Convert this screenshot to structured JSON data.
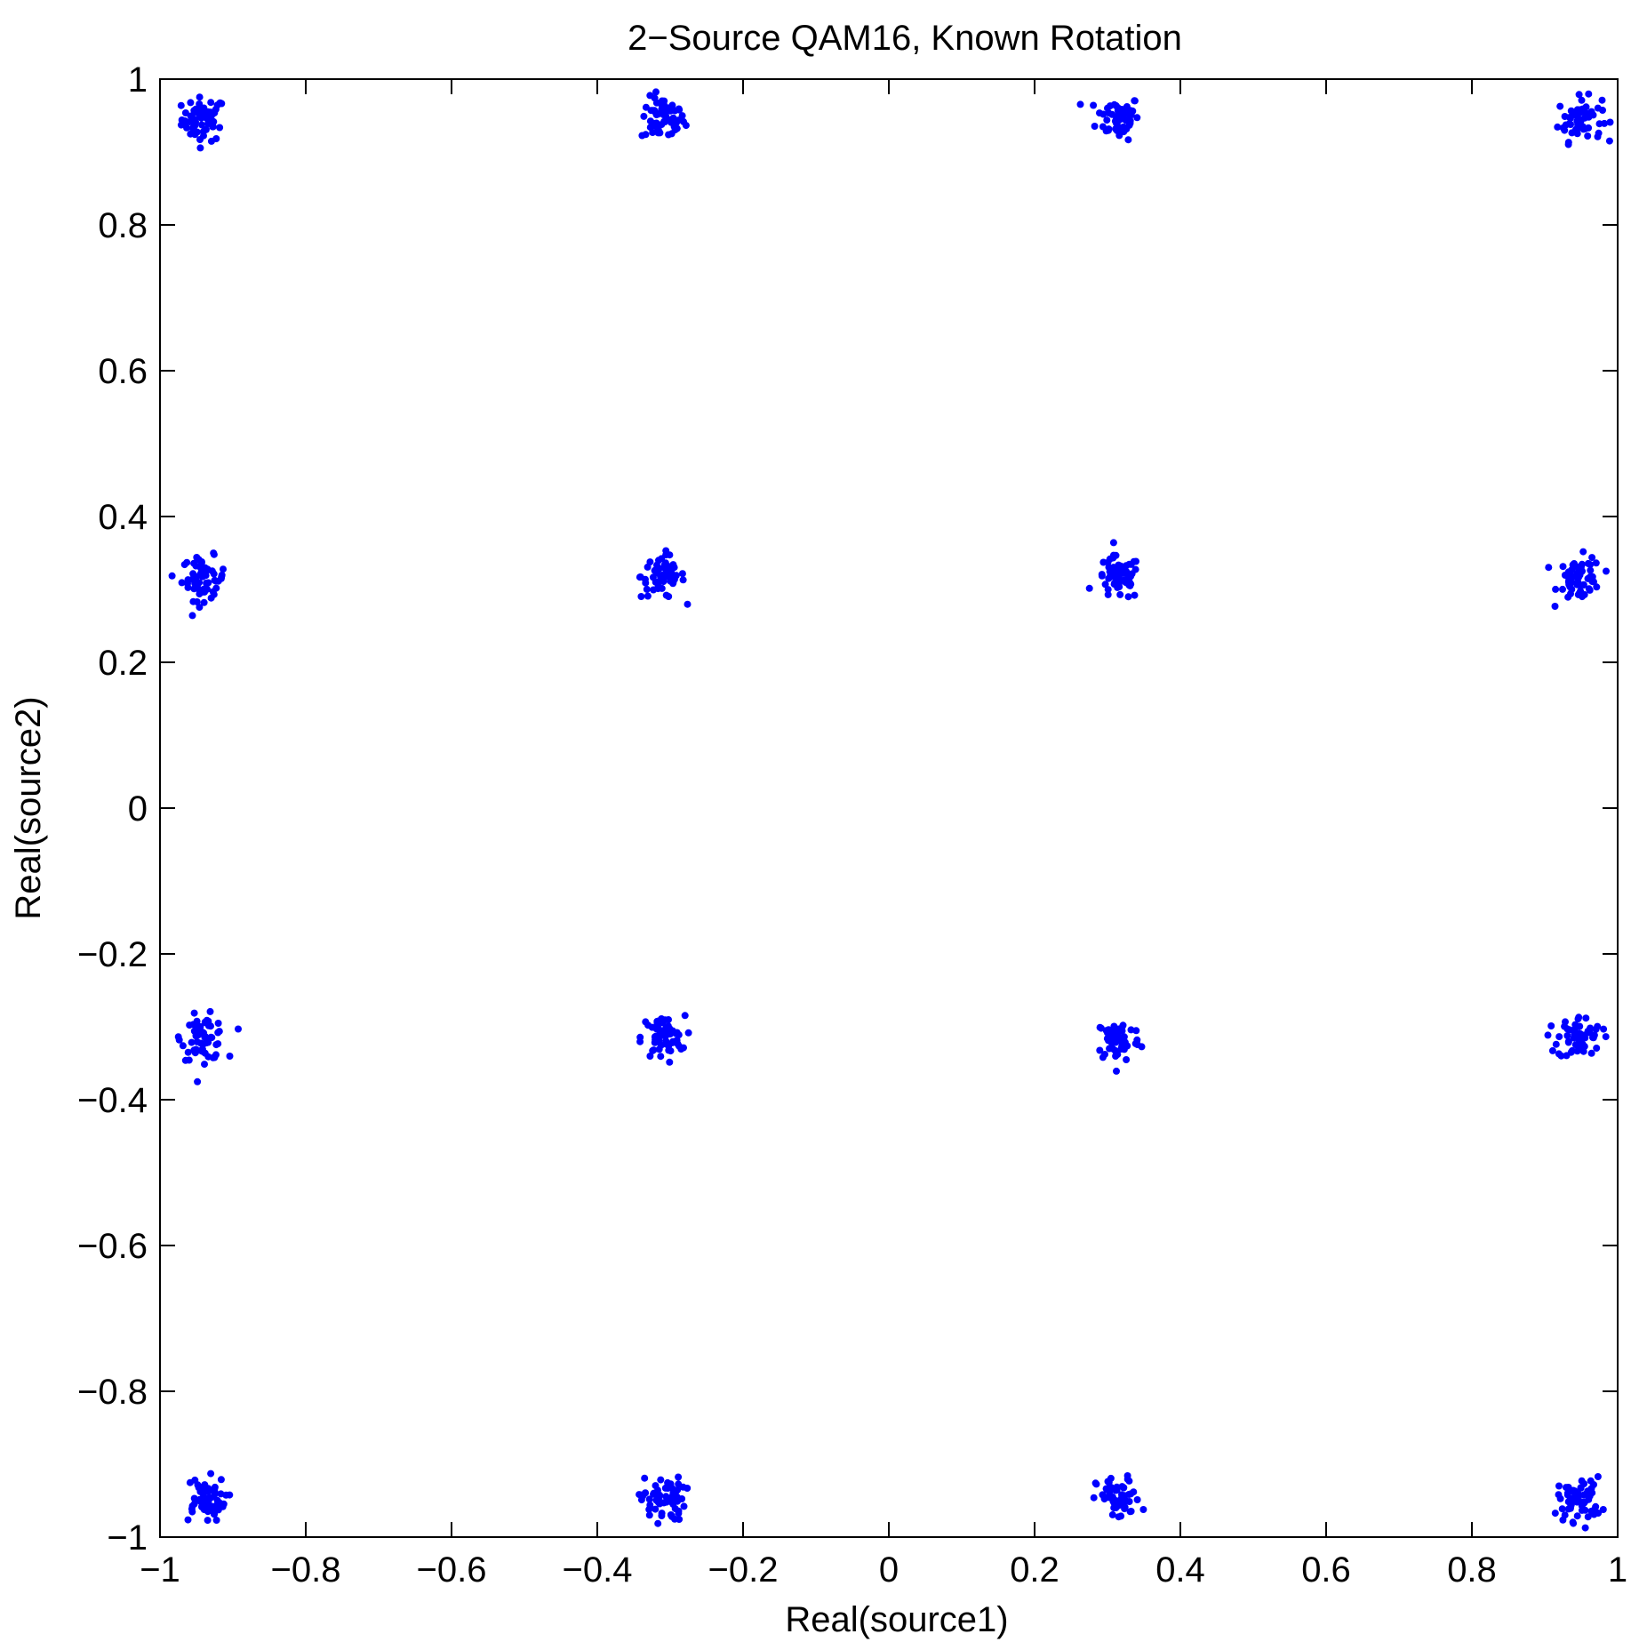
{
  "chart_data": {
    "type": "scatter",
    "title": "2−Source QAM16, Known Rotation",
    "xlabel": "Real(source1)",
    "ylabel": "Real(source2)",
    "xlim": [
      -1,
      1
    ],
    "ylim": [
      -1,
      1
    ],
    "xticks": [
      -1,
      -0.8,
      -0.6,
      -0.4,
      -0.2,
      0,
      0.2,
      0.4,
      0.6,
      0.8,
      1
    ],
    "yticks": [
      -1,
      -0.8,
      -0.6,
      -0.4,
      -0.2,
      0,
      0.2,
      0.4,
      0.6,
      0.8,
      1
    ],
    "xtick_labels": [
      "−1",
      "−0.8",
      "−0.6",
      "−0.4",
      "−0.2",
      "0",
      "0.2",
      "0.4",
      "0.6",
      "0.8",
      "1"
    ],
    "ytick_labels": [
      "−1",
      "−0.8",
      "−0.6",
      "−0.4",
      "−0.2",
      "0",
      "0.2",
      "0.4",
      "0.6",
      "0.8",
      "1"
    ],
    "grid": false,
    "marker_color": "#0000ff",
    "cluster_spread": 0.015,
    "points_per_cluster": 60,
    "series": [
      {
        "clusters": [
          {
            "x": -0.94,
            "y": 0.945
          },
          {
            "x": -0.31,
            "y": 0.945
          },
          {
            "x": 0.315,
            "y": 0.948
          },
          {
            "x": 0.948,
            "y": 0.945
          },
          {
            "x": -0.94,
            "y": 0.315
          },
          {
            "x": -0.31,
            "y": 0.318
          },
          {
            "x": 0.315,
            "y": 0.315
          },
          {
            "x": 0.948,
            "y": 0.315
          },
          {
            "x": -0.94,
            "y": -0.315
          },
          {
            "x": -0.31,
            "y": -0.315
          },
          {
            "x": 0.315,
            "y": -0.318
          },
          {
            "x": 0.948,
            "y": -0.315
          },
          {
            "x": -0.94,
            "y": -0.948
          },
          {
            "x": -0.31,
            "y": -0.948
          },
          {
            "x": 0.315,
            "y": -0.948
          },
          {
            "x": 0.948,
            "y": -0.948
          }
        ]
      }
    ]
  }
}
